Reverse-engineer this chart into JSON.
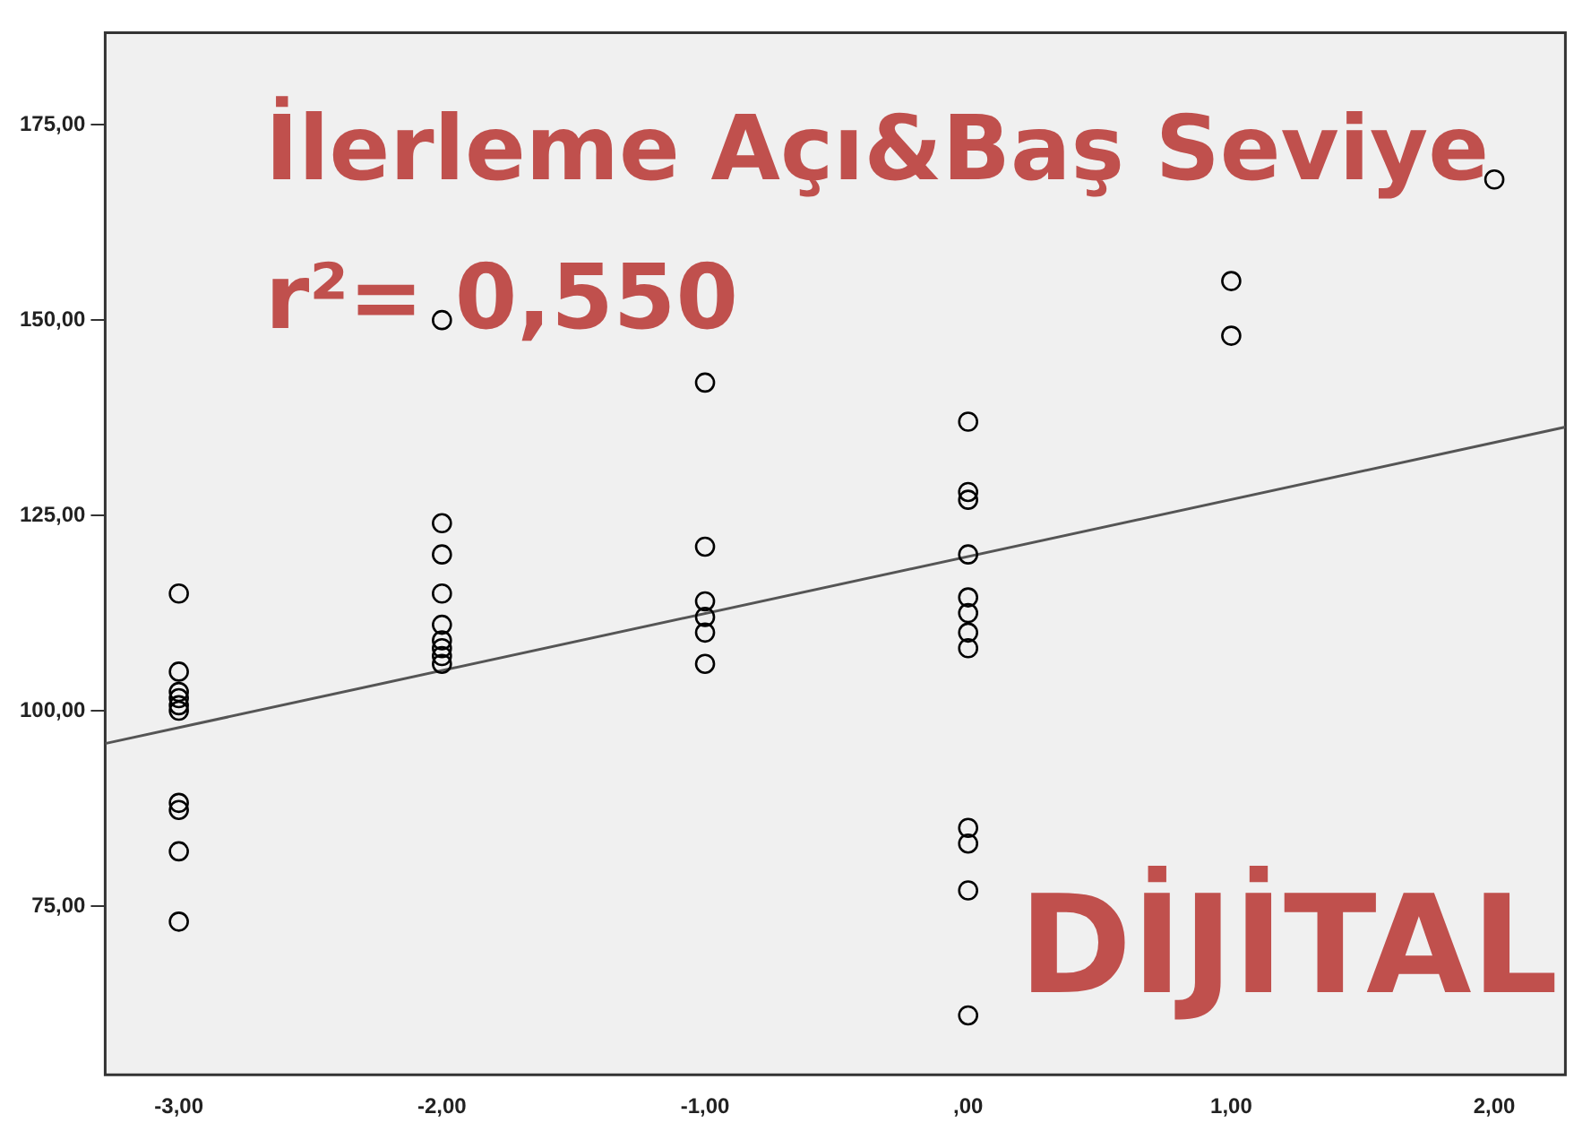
{
  "chart_data": {
    "type": "scatter",
    "grid": false,
    "legend": false,
    "annotations": [
      "İlerleme Açı&Baş Seviye",
      "r²= 0,550",
      "DİJİTAL"
    ],
    "xlim": [
      -3.28,
      2.27
    ],
    "ylim": [
      53.4,
      186.8
    ],
    "xticks": [
      {
        "value": -3,
        "label": "-3,00"
      },
      {
        "value": -2,
        "label": "-2,00"
      },
      {
        "value": -1,
        "label": "-1,00"
      },
      {
        "value": 0,
        "label": ",00"
      },
      {
        "value": 1,
        "label": "1,00"
      },
      {
        "value": 2,
        "label": "2,00"
      }
    ],
    "yticks": [
      {
        "value": 75,
        "label": "75,00"
      },
      {
        "value": 100,
        "label": "100,00"
      },
      {
        "value": 125,
        "label": "125,00"
      },
      {
        "value": 150,
        "label": "150,00"
      },
      {
        "value": 175,
        "label": "175,00"
      }
    ],
    "series": [
      {
        "marker": "circle",
        "color": "#000000",
        "x": [
          -3,
          -3,
          -3,
          -3,
          -3,
          -3,
          -3,
          -3,
          -3,
          -3,
          -2,
          -2,
          -2,
          -2,
          -2,
          -2,
          -2,
          -2,
          -2,
          -1,
          -1,
          -1,
          -1,
          -1,
          -1,
          0,
          0,
          0,
          0,
          0,
          0,
          0,
          0,
          0,
          0,
          0,
          0,
          1,
          1,
          2
        ],
        "values": [
          115,
          105,
          102.4,
          101.6,
          100.7,
          100,
          88.2,
          87.3,
          82,
          73,
          150,
          124,
          120,
          115,
          111,
          109,
          108,
          107,
          106,
          142,
          121,
          114,
          112,
          110,
          106,
          137,
          128,
          127,
          120,
          114.5,
          112.5,
          110,
          108,
          85,
          83,
          77,
          61,
          155,
          148,
          168
        ]
      },
      {
        "type": "line",
        "marker": "none",
        "color": "#555555",
        "x": [
          -3.28,
          2.27
        ],
        "values": [
          95.8,
          136.3
        ]
      }
    ]
  }
}
